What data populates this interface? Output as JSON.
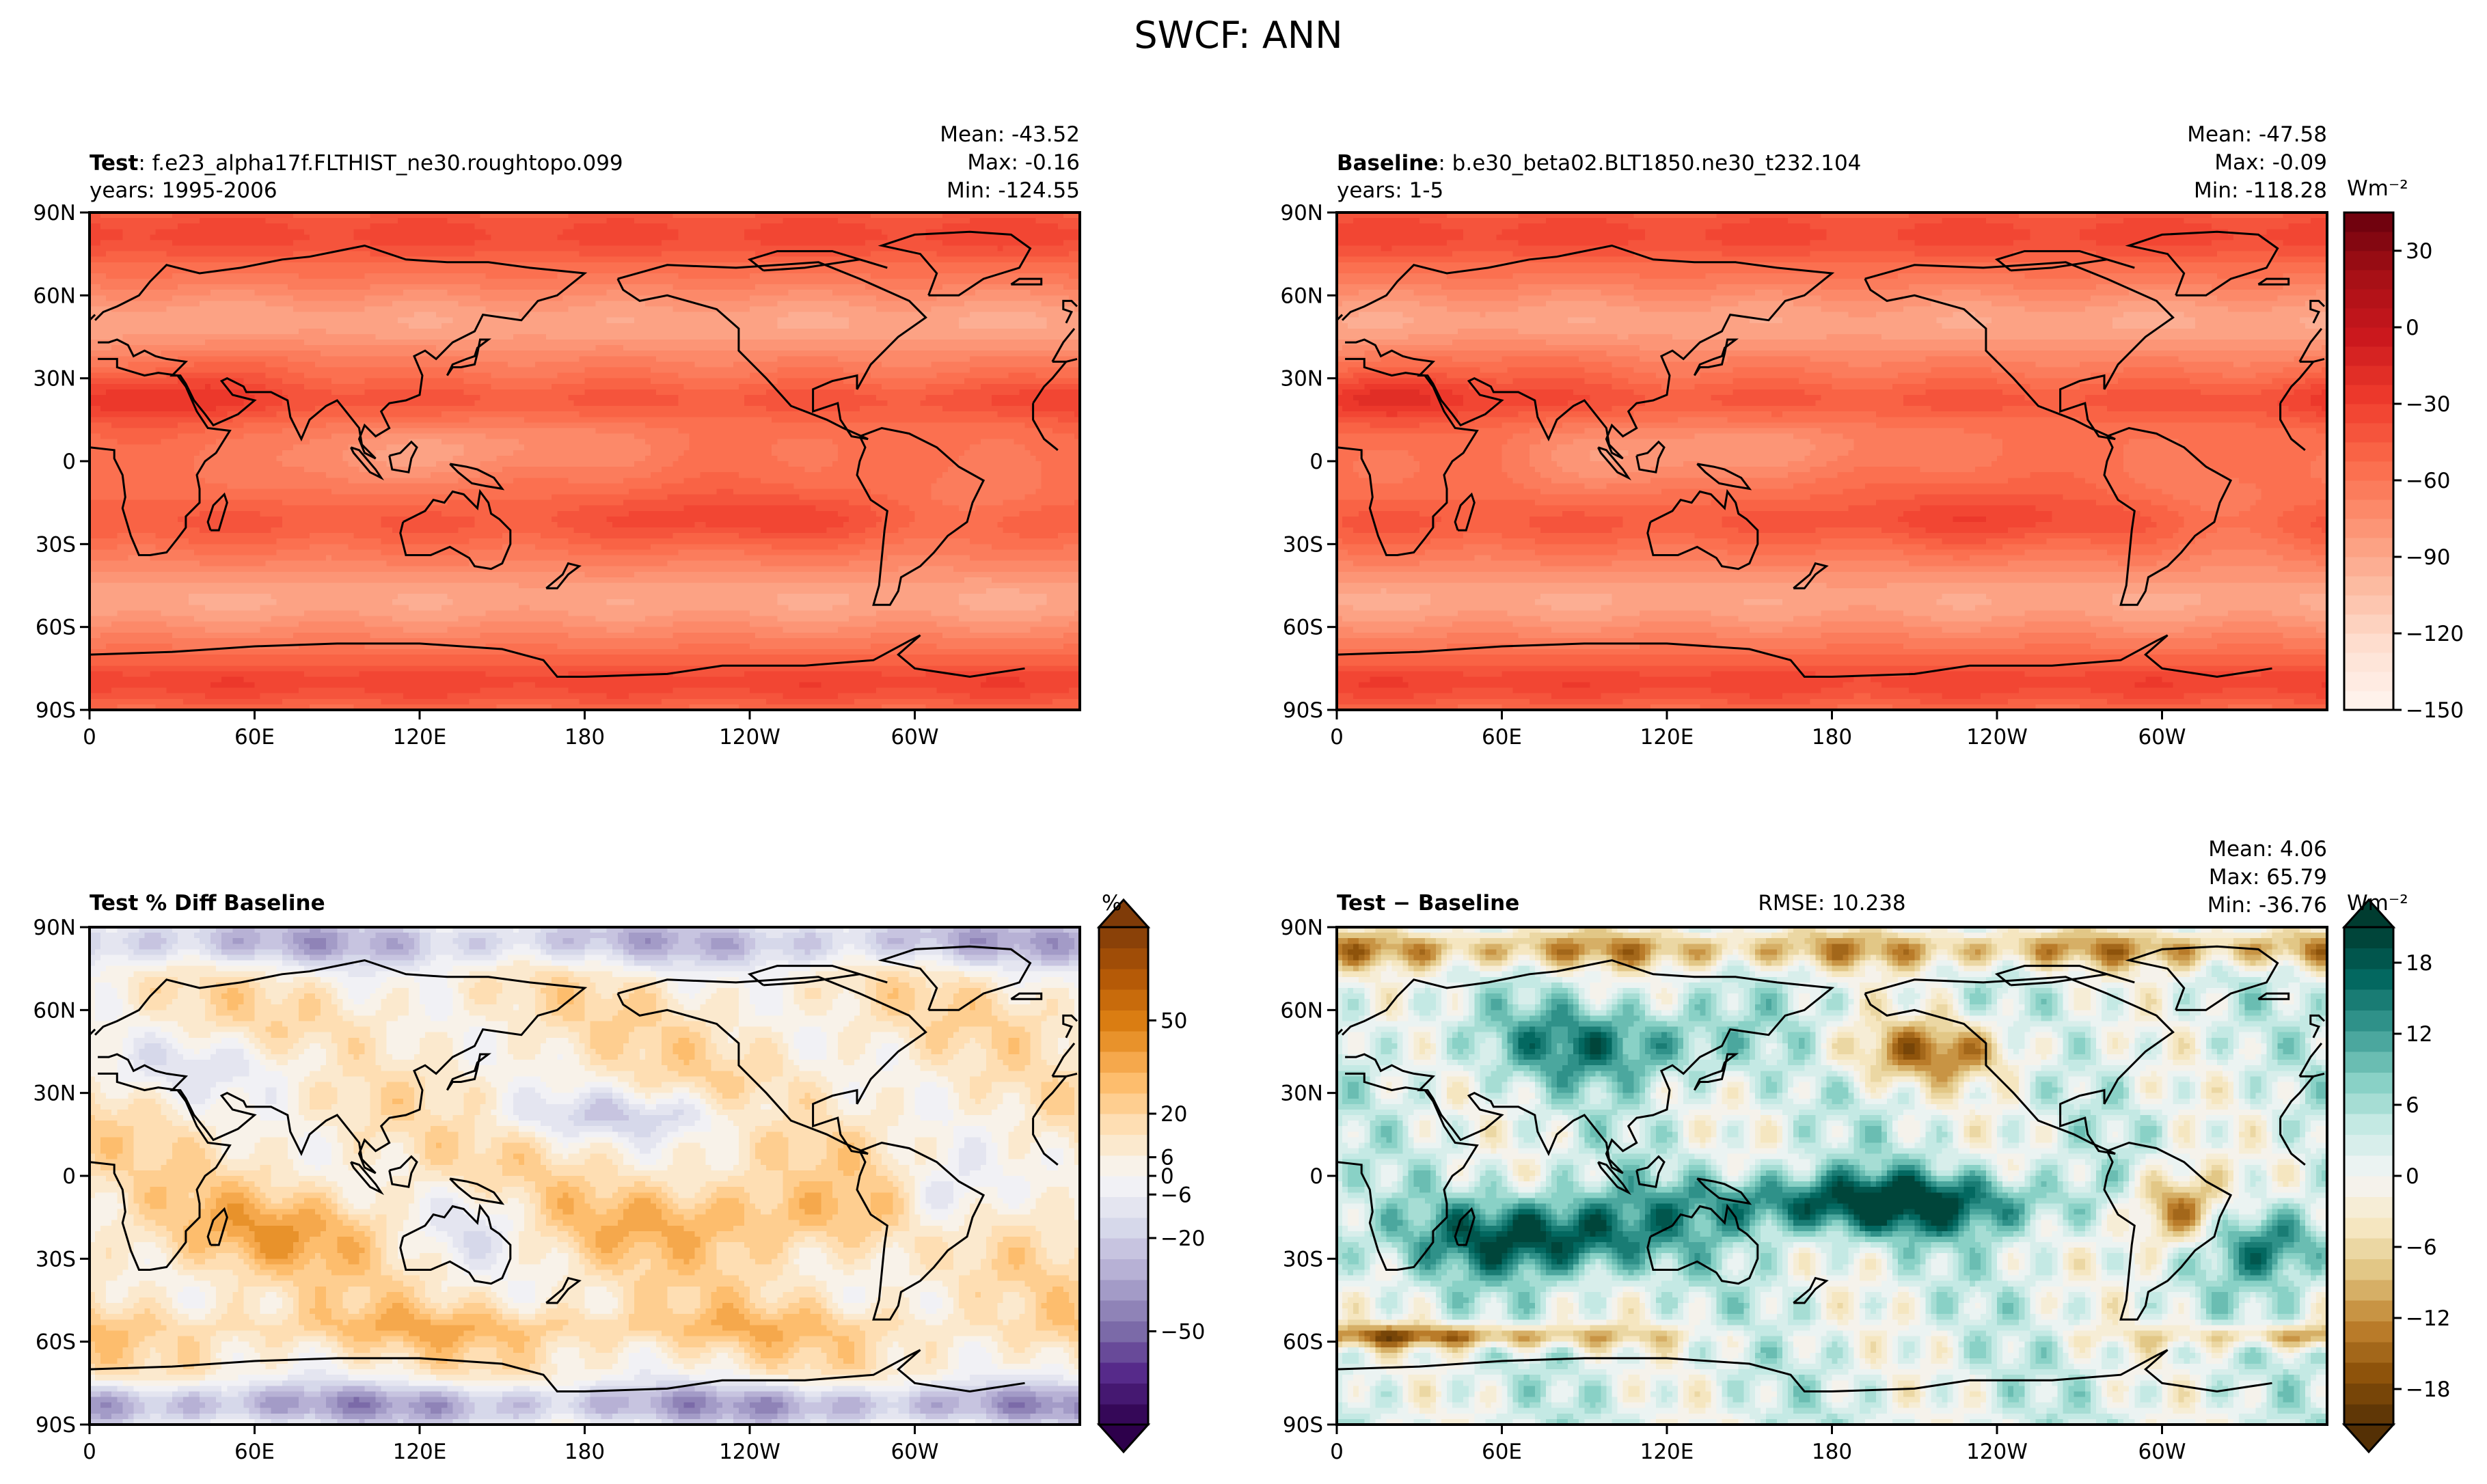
{
  "figure": {
    "title": "SWCF: ANN"
  },
  "chart_data": [
    {
      "type": "heatmap",
      "id": "test",
      "title_bold": "Test",
      "title_rest": ": f.e23_alpha17f.FLTHIST_ne30.roughtopo.099",
      "subtitle": "years: 1995-2006",
      "stats": [
        "Mean: -43.52",
        "Max: -0.16",
        "Min: -124.55"
      ],
      "stat_values": {
        "mean": -43.52,
        "max": -0.16,
        "min": -124.55
      },
      "x_ticks": [
        "0",
        "60E",
        "120E",
        "180",
        "120W",
        "60W"
      ],
      "y_ticks": [
        "90N",
        "60N",
        "30N",
        "0",
        "30S",
        "60S",
        "90S"
      ],
      "field": "swcf",
      "cmap": "reds"
    },
    {
      "type": "heatmap",
      "id": "baseline",
      "title_bold": "Baseline",
      "title_rest": ": b.e30_beta02.BLT1850.ne30_t232.104",
      "subtitle": "years: 1-5",
      "stats": [
        "Mean: -47.58",
        "Max: -0.09",
        "Min: -118.28"
      ],
      "stat_values": {
        "mean": -47.58,
        "max": -0.09,
        "min": -118.28
      },
      "x_ticks": [
        "0",
        "60E",
        "120E",
        "180",
        "120W",
        "60W"
      ],
      "y_ticks": [
        "90N",
        "60N",
        "30N",
        "0",
        "30S",
        "60S",
        "90S"
      ],
      "field": "swcf",
      "cmap": "reds",
      "colorbar": {
        "label": "Wm⁻²",
        "range": [
          -150,
          45
        ],
        "ticks": [
          30,
          0,
          -30,
          -60,
          -90,
          -120,
          -150
        ],
        "tick_labels": [
          "30",
          "0",
          "−30",
          "−60",
          "−90",
          "−120",
          "−150"
        ],
        "extend": "none"
      }
    },
    {
      "type": "heatmap",
      "id": "pctdiff",
      "title_bold": "Test % Diff Baseline",
      "title_rest": "",
      "subtitle": "",
      "stats": [],
      "x_ticks": [
        "0",
        "60E",
        "120E",
        "180",
        "120W",
        "60W"
      ],
      "y_ticks": [
        "90N",
        "60N",
        "30N",
        "0",
        "30S",
        "60S",
        "90S"
      ],
      "field": "pct",
      "cmap": "puor",
      "colorbar": {
        "label": "%",
        "range": [
          -80,
          80
        ],
        "ticks": [
          50,
          20,
          6,
          0,
          -6,
          -20,
          -50
        ],
        "tick_labels": [
          "50",
          "20",
          "6",
          "0",
          "−6",
          "−20",
          "−50"
        ],
        "extend": "both"
      }
    },
    {
      "type": "heatmap",
      "id": "diff",
      "title_bold": "Test − Baseline",
      "title_rest": "",
      "subtitle": "",
      "rmse": "RMSE: 10.238",
      "stats": [
        "Mean:  4.06",
        "Max: 65.79",
        "Min: -36.76"
      ],
      "stat_values": {
        "mean": 4.06,
        "max": 65.79,
        "min": -36.76,
        "rmse": 10.238
      },
      "x_ticks": [
        "0",
        "60E",
        "120E",
        "180",
        "120W",
        "60W"
      ],
      "y_ticks": [
        "90N",
        "60N",
        "30N",
        "0",
        "30S",
        "60S",
        "90S"
      ],
      "field": "diff",
      "cmap": "brbg",
      "colorbar": {
        "label": "Wm⁻²",
        "range": [
          -21,
          21
        ],
        "ticks": [
          18,
          12,
          6,
          0,
          -6,
          -12,
          -18
        ],
        "tick_labels": [
          "18",
          "12",
          "6",
          "0",
          "−6",
          "−12",
          "−18"
        ],
        "extend": "both"
      }
    }
  ],
  "colors": {
    "reds": [
      "#fff5f0",
      "#fee0d2",
      "#fcbba1",
      "#fc9272",
      "#fb6a4a",
      "#ef3b2c",
      "#cb181d",
      "#a50f15",
      "#67000d"
    ],
    "puor": [
      "#2d004b",
      "#542788",
      "#8073ac",
      "#b2abd2",
      "#d8daeb",
      "#f7f7f7",
      "#fee0b6",
      "#fdb863",
      "#e08214",
      "#b35806",
      "#7f3b08"
    ],
    "brbg": [
      "#543005",
      "#8c510a",
      "#bf812d",
      "#dfc27d",
      "#f6e8c3",
      "#f5f5f5",
      "#c7eae5",
      "#80cdc1",
      "#35978f",
      "#01665e",
      "#003c30"
    ],
    "coast": "#000000"
  }
}
